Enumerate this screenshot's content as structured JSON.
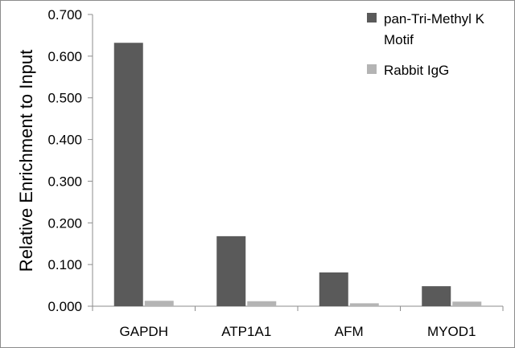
{
  "chart_data": {
    "type": "bar",
    "title": "",
    "xlabel": "",
    "ylabel": "Relative Enrichment to Input",
    "categories": [
      "GAPDH",
      "ATP1A1",
      "AFM",
      "MYOD1"
    ],
    "series": [
      {
        "name": "pan-Tri-Methyl K Motif",
        "values": [
          0.632,
          0.168,
          0.081,
          0.048
        ],
        "color": "#5a5a5a"
      },
      {
        "name": "Rabbit IgG",
        "values": [
          0.013,
          0.012,
          0.007,
          0.011
        ],
        "color": "#b4b4b4"
      }
    ],
    "ylim": [
      0,
      0.7
    ],
    "yticks": [
      "0.000",
      "0.100",
      "0.200",
      "0.300",
      "0.400",
      "0.500",
      "0.600",
      "0.700"
    ],
    "grid": false,
    "legend_position": "top-right",
    "legend_lines": [
      [
        "pan-Tri-Methyl K",
        "Motif"
      ],
      [
        "Rabbit IgG"
      ]
    ]
  }
}
